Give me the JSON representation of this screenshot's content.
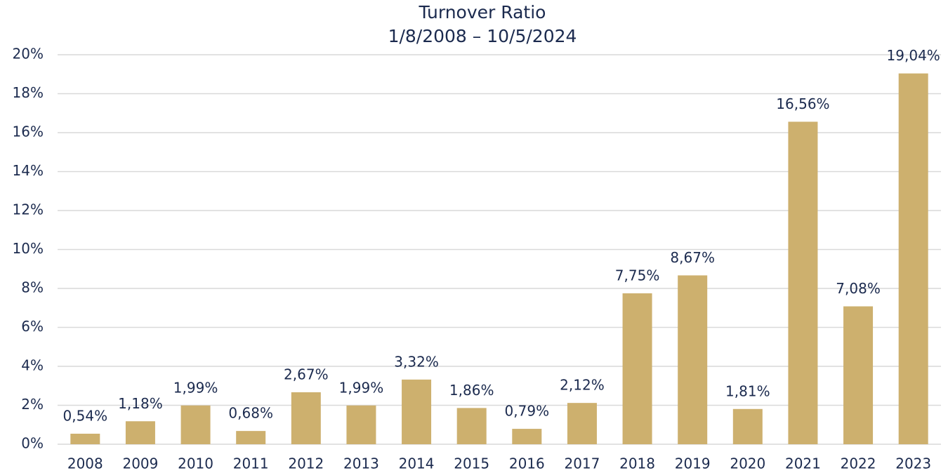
{
  "chart_data": {
    "type": "bar",
    "title": "Turnover Ratio",
    "subtitle": "1/8/2008 – 10/5/2024",
    "categories": [
      "2008",
      "2009",
      "2010",
      "2011",
      "2012",
      "2013",
      "2014",
      "2015",
      "2016",
      "2017",
      "2018",
      "2019",
      "2020",
      "2021",
      "2022",
      "2023"
    ],
    "values": [
      0.54,
      1.18,
      1.99,
      0.68,
      2.67,
      1.99,
      3.32,
      1.86,
      0.79,
      2.12,
      7.75,
      8.67,
      1.81,
      16.56,
      7.08,
      19.04
    ],
    "value_labels": [
      "0,54%",
      "1,18%",
      "1,99%",
      "0,68%",
      "2,67%",
      "1,99%",
      "3,32%",
      "1,86%",
      "0,79%",
      "2,12%",
      "7,75%",
      "8,67%",
      "1,81%",
      "16,56%",
      "7,08%",
      "19,04%"
    ],
    "color": "#cdb06e",
    "ylim": [
      0,
      20
    ],
    "yticks": [
      {
        "value": 0,
        "label": "0%"
      },
      {
        "value": 2,
        "label": "2%"
      },
      {
        "value": 4,
        "label": "4%"
      },
      {
        "value": 6,
        "label": "6%"
      },
      {
        "value": 8,
        "label": "8%"
      },
      {
        "value": 10,
        "label": "10%"
      },
      {
        "value": 12,
        "label": "12%"
      },
      {
        "value": 14,
        "label": "14%"
      },
      {
        "value": 16,
        "label": "16%"
      },
      {
        "value": 18,
        "label": "18%"
      },
      {
        "value": 20,
        "label": "20%"
      }
    ],
    "grid": true
  }
}
